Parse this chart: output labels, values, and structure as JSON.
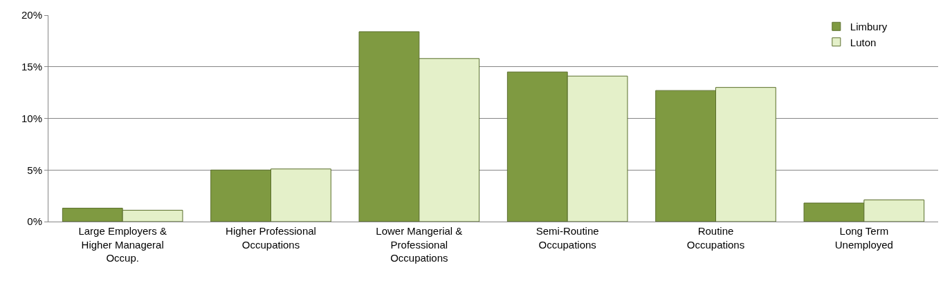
{
  "chart_data": {
    "type": "bar",
    "categories": [
      "Large Employers &\nHigher Manageral\nOccup.",
      "Higher Professional\nOccupations",
      "Lower Mangerial &\nProfessional\nOccupations",
      "Semi-Routine\nOccupations",
      "Routine\nOccupations",
      "Long Term\nUnemployed"
    ],
    "series": [
      {
        "name": "Limbury",
        "color": "#7f9a41",
        "values": [
          1.3,
          5.0,
          18.4,
          14.5,
          12.7,
          1.8
        ]
      },
      {
        "name": "Luton",
        "color": "#e4f0c9",
        "values": [
          1.1,
          5.1,
          15.8,
          14.1,
          13.0,
          2.1
        ]
      }
    ],
    "ylim": [
      0,
      20
    ],
    "yticks": [
      {
        "value": 0,
        "label": "0%"
      },
      {
        "value": 5,
        "label": "5%"
      },
      {
        "value": 10,
        "label": "10%"
      },
      {
        "value": 15,
        "label": "15%"
      },
      {
        "value": 20,
        "label": "20%"
      }
    ],
    "grid": "y",
    "legend": "top right"
  }
}
